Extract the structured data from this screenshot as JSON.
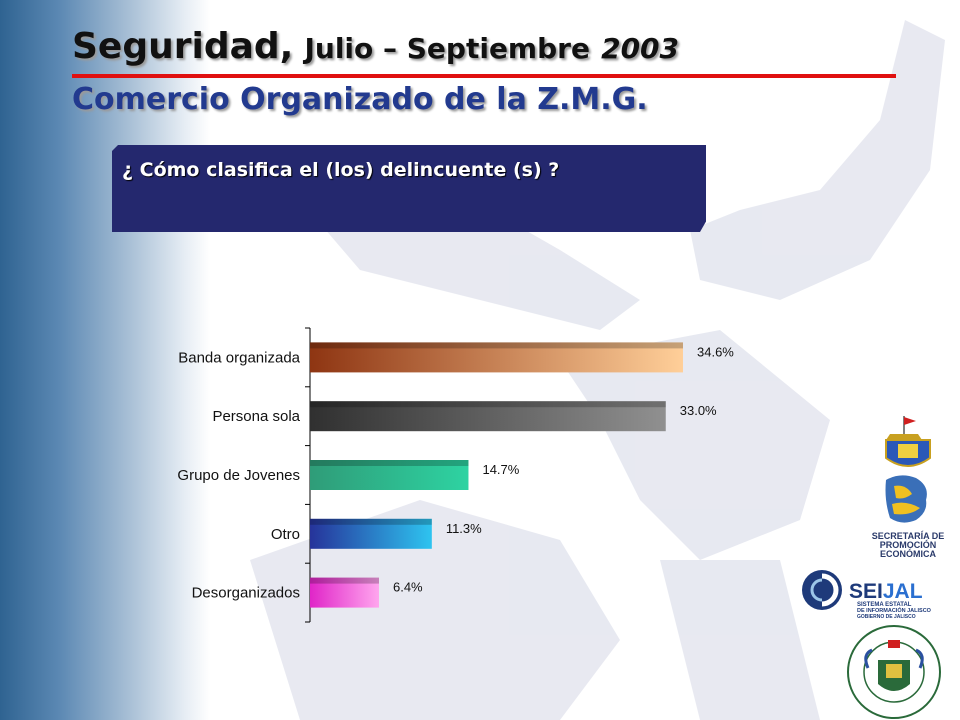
{
  "slide": {
    "title_part1": "Seguridad,",
    "title_part2": "Julio – Septiembre",
    "title_part3": "2003",
    "subtitle": "Comercio Organizado de la Z.M.G.",
    "question": "¿ Cómo clasifica el (los) delincuente (s) ?"
  },
  "chart_data": {
    "type": "bar",
    "orientation": "horizontal",
    "categories": [
      "Banda organizada",
      "Persona sola",
      "Grupo de Jovenes",
      "Otro",
      "Desorganizados"
    ],
    "values": [
      34.6,
      33.0,
      14.7,
      11.3,
      6.4
    ],
    "value_labels": [
      "34.6%",
      "33.0%",
      "14.7%",
      "11.3%",
      "6.4%"
    ],
    "unit": "%",
    "xlim": [
      0,
      40
    ],
    "grid": false,
    "bar_colors": [
      [
        "#8e3512",
        "#ffcf99"
      ],
      [
        "#303030",
        "#909090"
      ],
      [
        "#2f9c78",
        "#2ed3a2"
      ],
      [
        "#26339a",
        "#2ec4f0"
      ],
      [
        "#e025c8",
        "#ffa6ee"
      ]
    ]
  },
  "logos": {
    "spe_line1": "SECRETARÍA DE",
    "spe_line2": "PROMOCIÓN",
    "spe_line3": "ECONÓMICA",
    "seijal_name_a": "SEI",
    "seijal_name_b": "JAL",
    "seijal_line1": "SISTEMA ESTATAL",
    "seijal_line2": "DE INFORMACIÓN JALISCO",
    "seijal_line3": "GOBIERNO DE JALISCO",
    "camara_ring": "CAMARA DE COMERCIO DE GUADALAJARA"
  },
  "icons": [
    "jalisco-coat-of-arms-icon",
    "spe-logo-icon",
    "seijal-logo-icon",
    "camara-seal-icon"
  ]
}
